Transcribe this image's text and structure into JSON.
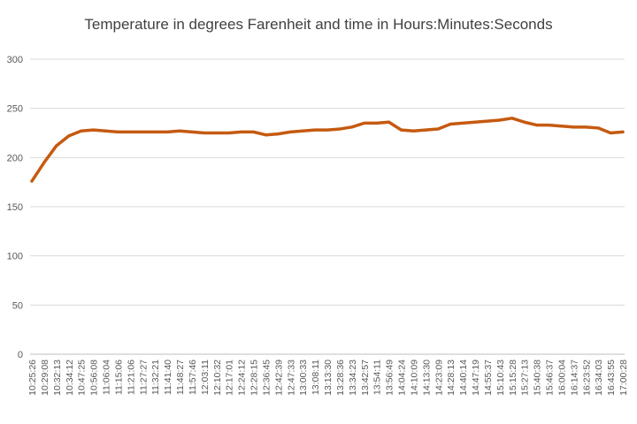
{
  "chart_data": {
    "type": "line",
    "title": "Temperature in degrees Farenheit and time in Hours:Minutes:Seconds",
    "xlabel": "",
    "ylabel": "",
    "ylim": [
      0,
      300
    ],
    "yticks": [
      0,
      50,
      100,
      150,
      200,
      250,
      300
    ],
    "grid": true,
    "legend": "none",
    "categories": [
      "10:25:26",
      "10:29:08",
      "10:32:13",
      "10:34:12",
      "10:47:25",
      "10:56:08",
      "11:06:04",
      "11:15:06",
      "11:21:06",
      "11:27:27",
      "11:32:21",
      "11:41:40",
      "11:48:27",
      "11:57:46",
      "12:03:11",
      "12:10:32",
      "12:17:01",
      "12:24:12",
      "12:28:15",
      "12:36:45",
      "12:42:39",
      "12:47:33",
      "13:00:33",
      "13:08:11",
      "13:13:30",
      "13:28:36",
      "13:34:23",
      "13:42:57",
      "13:54:11",
      "13:56:49",
      "14:04:24",
      "14:10:09",
      "14:13:30",
      "14:23:09",
      "14:28:13",
      "14:40:14",
      "14:47:19",
      "14:55:37",
      "15:10:43",
      "15:15:28",
      "15:27:13",
      "15:40:38",
      "15:46:37",
      "16:00:04",
      "16:14:37",
      "16:23:52",
      "16:34:03",
      "16:43:55",
      "17:00:28"
    ],
    "series": [
      {
        "values": [
          176,
          195,
          212,
          222,
          227,
          228,
          227,
          226,
          226,
          226,
          226,
          226,
          227,
          226,
          225,
          225,
          225,
          226,
          226,
          223,
          224,
          226,
          227,
          228,
          228,
          229,
          231,
          235,
          235,
          236,
          228,
          227,
          228,
          229,
          234,
          235,
          236,
          237,
          238,
          240,
          236,
          233,
          233,
          232,
          231,
          231,
          230,
          225,
          226
        ],
        "color": "#C55A11"
      }
    ]
  }
}
